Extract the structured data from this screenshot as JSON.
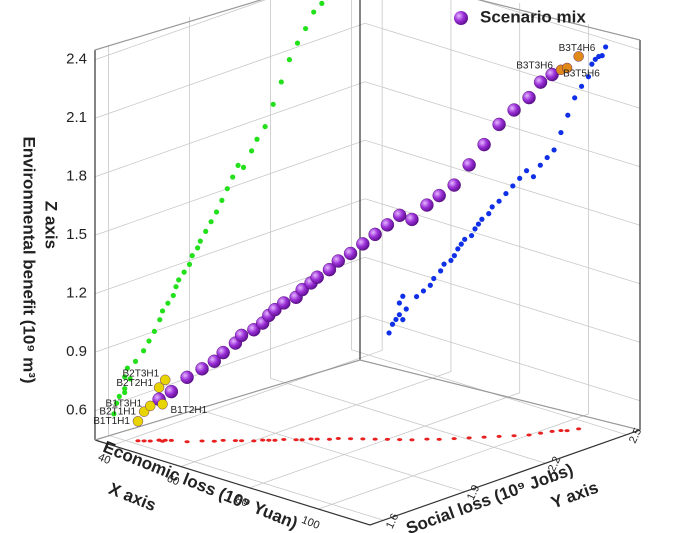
{
  "chart_data": {
    "type": "scatter3d",
    "legend": "Scenario mix",
    "x_axis_title": "X axis",
    "x_label": "Economic loss (10⁹ Yuan)",
    "y_axis_title": "Y axis",
    "y_label": "Social loss (10⁹ Jobs)",
    "z_axis_title": "Z axis",
    "z_label": "Environmental benefit (10⁹ m³)",
    "xlim": [
      35,
      115
    ],
    "ylim": [
      1.55,
      2.55
    ],
    "zlim": [
      0.45,
      2.45
    ],
    "xticks": [
      40,
      60,
      80,
      100
    ],
    "yticks": [
      1.6,
      1.9,
      2.2,
      2.5
    ],
    "zticks": [
      0.6,
      0.9,
      1.2,
      1.5,
      1.8,
      2.1,
      2.4
    ],
    "grid": true,
    "color": "#8e24c8",
    "projection_colors": {
      "yz": "#22e01a",
      "xz": "#1030e8",
      "xy": "#e82020"
    },
    "x": [
      45,
      47,
      50,
      52,
      54,
      55,
      57,
      58,
      60,
      61,
      62,
      63,
      64,
      66,
      67,
      68,
      69,
      71,
      72,
      74,
      76,
      78,
      80,
      82,
      84,
      86,
      88,
      90,
      92,
      94,
      96,
      98,
      100,
      101,
      102
    ],
    "y": [
      1.66,
      1.68,
      1.7,
      1.73,
      1.75,
      1.77,
      1.79,
      1.8,
      1.82,
      1.84,
      1.85,
      1.86,
      1.88,
      1.9,
      1.91,
      1.93,
      1.94,
      1.96,
      1.98,
      2.0,
      2.02,
      2.04,
      2.06,
      2.08,
      2.1,
      2.13,
      2.15,
      2.18,
      2.21,
      2.24,
      2.27,
      2.3,
      2.33,
      2.36,
      2.39
    ],
    "z": [
      0.66,
      0.7,
      0.78,
      0.82,
      0.86,
      0.9,
      0.95,
      0.99,
      1.02,
      1.05,
      1.09,
      1.12,
      1.15,
      1.18,
      1.22,
      1.25,
      1.28,
      1.32,
      1.36,
      1.4,
      1.45,
      1.5,
      1.55,
      1.6,
      1.58,
      1.65,
      1.7,
      1.75,
      1.85,
      1.95,
      2.05,
      2.12,
      2.18,
      2.25,
      2.28
    ],
    "labeled_points": [
      {
        "label": "B1T1H1",
        "x": 42,
        "y": 1.62,
        "z": 0.55,
        "color": "#e8d400"
      },
      {
        "label": "B2T1H1",
        "x": 43,
        "y": 1.63,
        "z": 0.6,
        "color": "#e8d400"
      },
      {
        "label": "B1T3H1",
        "x": 44,
        "y": 1.64,
        "z": 0.63,
        "color": "#e8d400"
      },
      {
        "label": "B1T2H1",
        "x": 46,
        "y": 1.66,
        "z": 0.64,
        "color": "#e8d400"
      },
      {
        "label": "B2T2H1",
        "x": 45,
        "y": 1.66,
        "z": 0.72,
        "color": "#e8d400"
      },
      {
        "label": "B2T3H1",
        "x": 46,
        "y": 1.67,
        "z": 0.76,
        "color": "#e8d400"
      },
      {
        "label": "B3T3H6",
        "x": 103,
        "y": 2.41,
        "z": 2.3,
        "color": "#e08a1a"
      },
      {
        "label": "B3T5H6",
        "x": 104,
        "y": 2.42,
        "z": 2.31,
        "color": "#e08a1a"
      },
      {
        "label": "B3T4H6",
        "x": 105,
        "y": 2.45,
        "z": 2.36,
        "color": "#e08a1a"
      }
    ]
  }
}
